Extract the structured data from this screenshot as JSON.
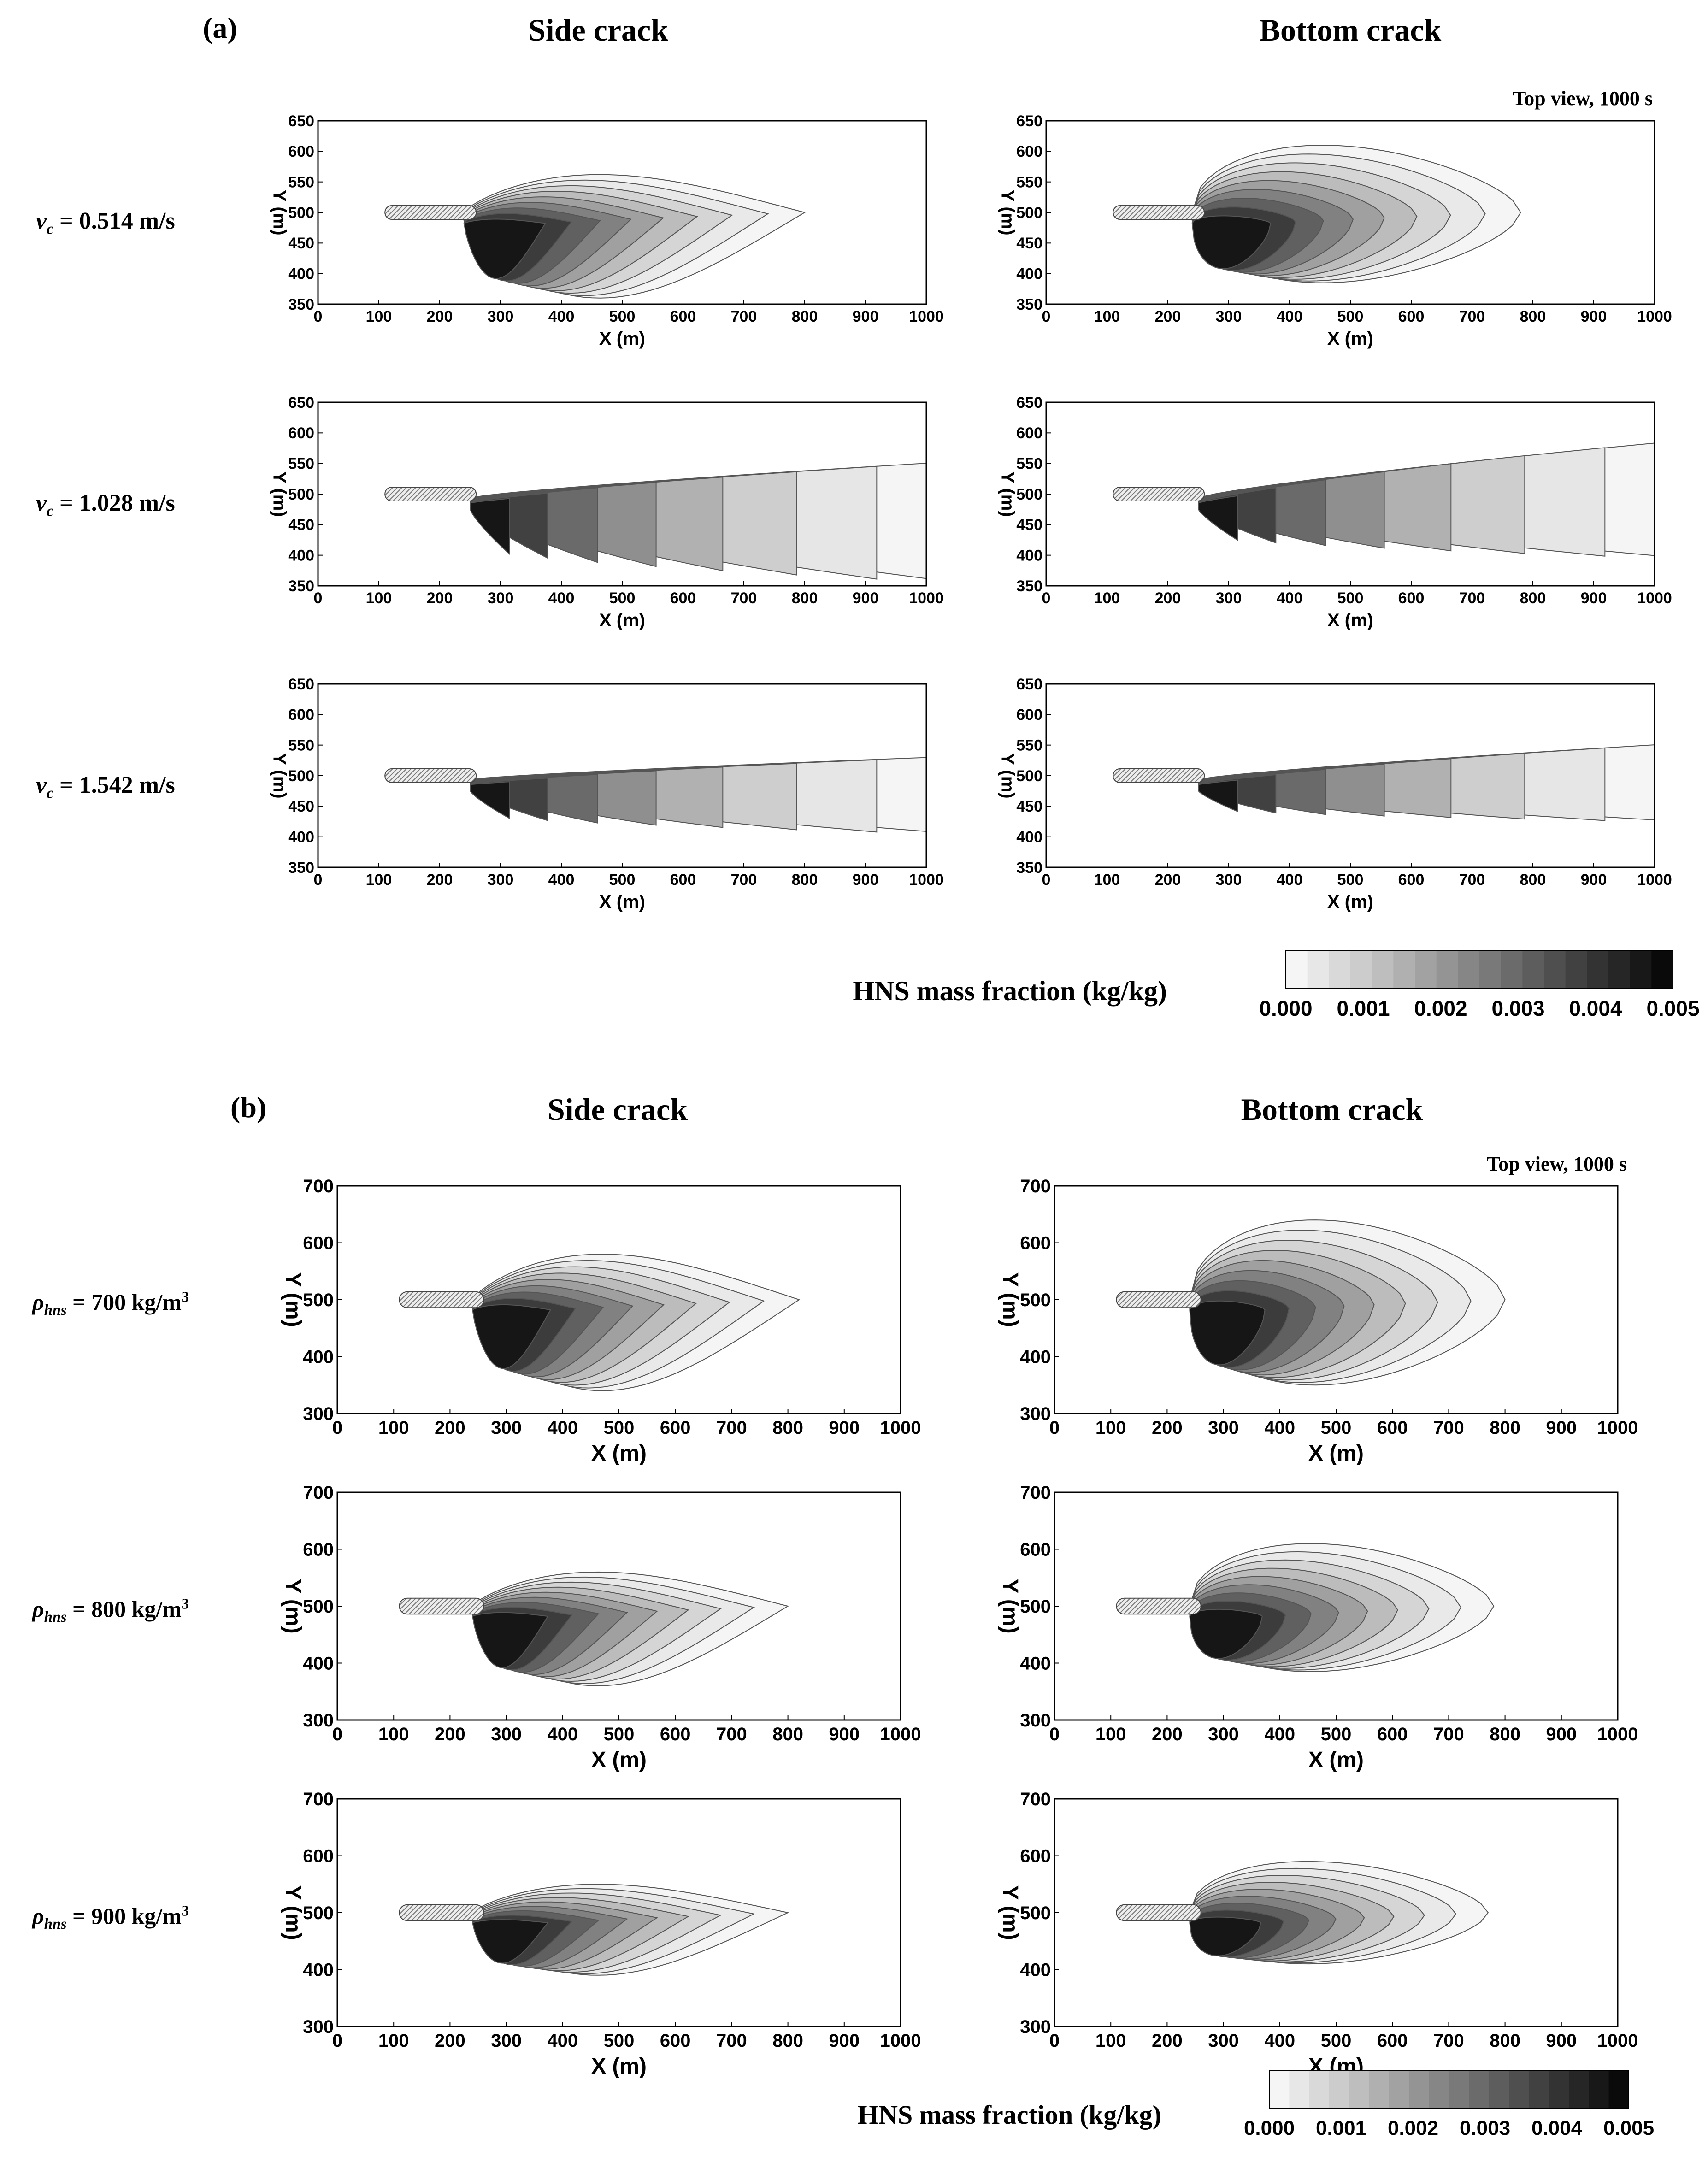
{
  "panel_a": {
    "letter": "(a)",
    "col_side": "Side crack",
    "col_bottom": "Bottom crack",
    "view_note": "Top view, 1000 s",
    "rows": [
      {
        "sym": "v",
        "sub": "c",
        "rest": " = 0.514 m/s"
      },
      {
        "sym": "v",
        "sub": "c",
        "rest": " = 1.028 m/s"
      },
      {
        "sym": "v",
        "sub": "c",
        "rest": " = 1.542 m/s"
      }
    ],
    "colorbar_label": "HNS mass fraction (kg/kg)"
  },
  "panel_b": {
    "letter": "(b)",
    "col_side": "Side crack",
    "col_bottom": "Bottom crack",
    "view_note": "Top view, 1000 s",
    "rows": [
      {
        "sym": "ρ",
        "sub": "hns",
        "rest": " = 700 kg/m",
        "sup": "3"
      },
      {
        "sym": "ρ",
        "sub": "hns",
        "rest": " = 800 kg/m",
        "sup": "3"
      },
      {
        "sym": "ρ",
        "sub": "hns",
        "rest": " = 900 kg/m",
        "sup": "3"
      }
    ],
    "colorbar_label": "HNS mass fraction (kg/kg)"
  },
  "chart_data": [
    {
      "type": "contour",
      "panel": "a",
      "title": "Side crack / Bottom crack",
      "xlabel": "X (m)",
      "ylabel": "Y (m)",
      "xlim": [
        0,
        1000
      ],
      "ylim": [
        350,
        650
      ],
      "xticks": [
        0,
        100,
        200,
        300,
        400,
        500,
        600,
        700,
        800,
        900,
        1000
      ],
      "yticks": [
        350,
        400,
        450,
        500,
        550,
        600,
        650
      ],
      "plume_extent_x_m": {
        "vc_0.514_side": 780,
        "vc_0.514_bottom": 760,
        "vc_1.028_side": 1000,
        "vc_1.028_bottom": 1000,
        "vc_1.542_side": 1000,
        "vc_1.542_bottom": 1000
      },
      "colorbar": {
        "min": 0.0,
        "max": 0.005,
        "ticks": [
          "0.000",
          "0.001",
          "0.002",
          "0.003",
          "0.004",
          "0.005"
        ],
        "levels": 18
      }
    },
    {
      "type": "contour",
      "panel": "b",
      "title": "Side crack / Bottom crack",
      "xlabel": "X (m)",
      "ylabel": "Y (m)",
      "xlim": [
        0,
        1000
      ],
      "ylim": [
        300,
        700
      ],
      "xticks": [
        0,
        100,
        200,
        300,
        400,
        500,
        600,
        700,
        800,
        900,
        1000
      ],
      "yticks": [
        300,
        400,
        500,
        600,
        700
      ],
      "plume_extent_x_m": {
        "rho_700_side": 800,
        "rho_700_bottom": 770,
        "rho_800_side": 780,
        "rho_800_bottom": 760,
        "rho_900_side": 780,
        "rho_900_bottom": 750
      },
      "colorbar": {
        "min": 0.0,
        "max": 0.005,
        "ticks": [
          "0.000",
          "0.001",
          "0.002",
          "0.003",
          "0.004",
          "0.005"
        ],
        "levels": 18
      }
    }
  ]
}
